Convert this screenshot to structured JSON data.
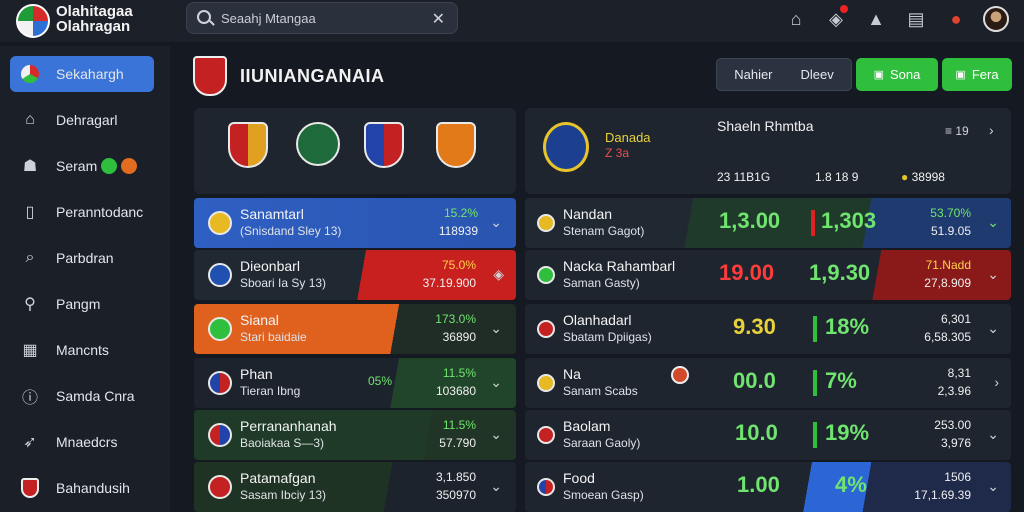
{
  "header": {
    "brand": "Olahitagaa\nOlahragan",
    "search_text": "Seaahj Mtangaa",
    "close_glyph": "✕"
  },
  "sidebar": {
    "items": [
      {
        "label": "Sekahargh",
        "icon": "flag-icon"
      },
      {
        "label": "Dehragarl",
        "icon": "home-icon"
      },
      {
        "label": "Seram",
        "icon": "user-icon"
      },
      {
        "label": "Peranntodanc",
        "icon": "document-icon"
      },
      {
        "label": "Parbdran",
        "icon": "search-icon"
      },
      {
        "label": "Pangm",
        "icon": "person-icon"
      },
      {
        "label": "Mancnts",
        "icon": "grid-icon"
      },
      {
        "label": "Samda Cnra",
        "icon": "info-icon"
      },
      {
        "label": "Mnaedcrs",
        "icon": "rocket-icon"
      },
      {
        "label": "Bahandusih",
        "icon": "crest-icon"
      }
    ],
    "seram_badge_colors": [
      "#2fbf3d",
      "#e26c1f"
    ]
  },
  "main": {
    "title": "IIUNIANGANAIA",
    "buttons": [
      {
        "label": "Nahier"
      },
      {
        "label": "Dleev"
      },
      {
        "label": "Sona",
        "icon": "save-icon"
      },
      {
        "label": "Fera",
        "icon": "play-icon"
      }
    ]
  },
  "right_header": {
    "team_name": "Danada",
    "team_sub": "Z 3a",
    "heading": "Shaeln Rhmtba",
    "count": "19",
    "stats": [
      "23 11B1G",
      "1.8 18 9",
      "38998"
    ]
  },
  "left_rows": [
    {
      "name": "Sanamtarl",
      "sub": "(Snisdand Sley 13)",
      "v1": "15.2%",
      "v2": "118939"
    },
    {
      "name": "Dieonbarl",
      "sub": "Sboari Ia Sy 13)",
      "v1": "75.0%",
      "v2": "37.19.900"
    },
    {
      "name": "Sianal",
      "sub": "Stari baidaie",
      "v1": "173.0%",
      "v2": "36890"
    },
    {
      "name": "Phan",
      "sub": "Tieran Ibng",
      "v1": "11.5%",
      "v2": "103680",
      "extra": "05%"
    },
    {
      "name": "Perrananhanah",
      "sub": "Baoiakaa S—3)",
      "v1": "11.5%",
      "v2": "57.790"
    },
    {
      "name": "Patamafgan",
      "sub": "Sasam Ibciy 13)",
      "v1": "3,1.850",
      "v2": "350970"
    }
  ],
  "right_rows": [
    {
      "name": "Nandan",
      "sub": "Stenam Gagot)",
      "odds1": "1,3.00",
      "odds2": "1,303",
      "v1": "53.70%",
      "v2": "51.9.05"
    },
    {
      "name": "Nacka Rahambarl",
      "sub": "Saman Gasty)",
      "odds1": "19.00",
      "odds2": "1,9.30",
      "v1": "71.Nadd",
      "v2": "27,8.909"
    },
    {
      "name": "Olanhadarl",
      "sub": "Sbatam Dpiigas)",
      "odds1": "9.30",
      "odds2": "18%",
      "v1": "6,301",
      "v2": "6,58.305"
    },
    {
      "name": "Na",
      "sub": "Sanam Scabs",
      "odds1": "00.0",
      "odds2": "7%",
      "v1": "8,31",
      "v2": "2,3.96"
    },
    {
      "name": "Baolam",
      "sub": "Saraan Gaoly)",
      "odds1": "10.0",
      "odds2": "19%",
      "v1": "253.00",
      "v2": "3,976"
    },
    {
      "name": "Food",
      "sub": "Smoean Gasp)",
      "odds1": "1.00",
      "odds2": "4%",
      "v1": "1506",
      "v2": "17,1.69.39"
    }
  ]
}
